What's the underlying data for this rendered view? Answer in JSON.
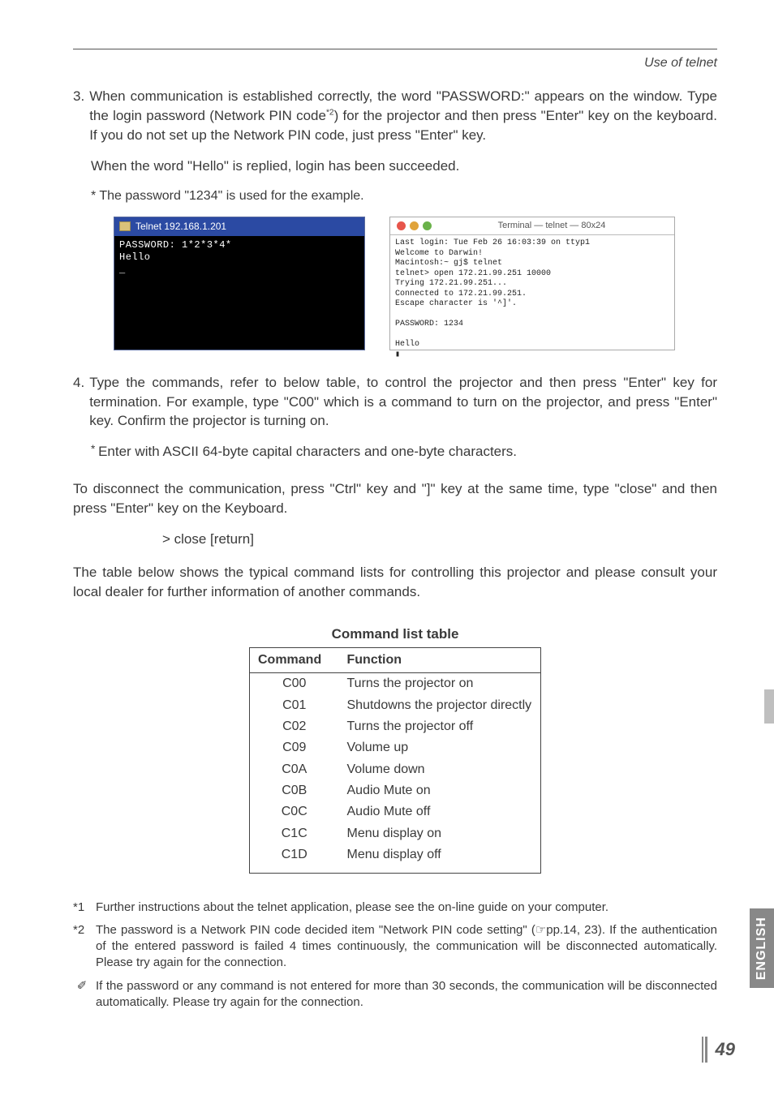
{
  "header": {
    "title": "Use of telnet"
  },
  "step3": {
    "num": "3.",
    "text_a": "When communication is established correctly, the word \"PASSWORD:\" appears on the window. Type the login password (Network PIN code",
    "sup": "*2",
    "text_b": ") for the projector and then press \"Enter\" key on the keyboard. If you do not set up the Network PIN code, just press \"Enter\" key.",
    "line2": "When the word \"Hello\" is replied, login has been succeeded.",
    "note": "* The password \"1234\" is used for the example."
  },
  "telnet": {
    "title": "Telnet 192.168.1.201",
    "body": "PASSWORD: 1*2*3*4*\nHello\n_"
  },
  "mac": {
    "title": "Terminal — telnet — 80x24",
    "btn_colors": [
      "#e7554b",
      "#e0a33a",
      "#6ab24a"
    ],
    "body": "Last login: Tue Feb 26 16:03:39 on ttyp1\nWelcome to Darwin!\nMacintosh:~ gj$ telnet\ntelnet> open 172.21.99.251 10000\nTrying 172.21.99.251...\nConnected to 172.21.99.251.\nEscape character is '^]'.\n\nPASSWORD: 1234\n\nHello\n▮"
  },
  "step4": {
    "num": "4.",
    "text": "Type the commands, refer to below table, to control the projector and then press \"Enter\" key for termination. For example, type \"C00\" which is a command to turn on the projector, and press \"Enter\" key. Confirm the projector is turning on.",
    "sub": "Enter with ASCII 64-byte capital characters and one-byte characters."
  },
  "disconnect": {
    "p": "To disconnect the communication, press \"Ctrl\" key and \"]\" key at the same time, type \"close\" and then press \"Enter\" key on the Keyboard.",
    "example": "> close [return]"
  },
  "table_intro": "The table below shows the typical command lists for controlling this projector and please consult your local dealer for further information of another commands.",
  "cmd_table": {
    "title": "Command list table",
    "headers": [
      "Command",
      "Function"
    ],
    "rows": [
      [
        "C00",
        "Turns the projector on"
      ],
      [
        "C01",
        "Shutdowns the projector directly"
      ],
      [
        "C02",
        "Turns the projector off"
      ],
      [
        "C09",
        "Volume up"
      ],
      [
        "C0A",
        "Volume down"
      ],
      [
        "C0B",
        "Audio Mute on"
      ],
      [
        "C0C",
        "Audio Mute off"
      ],
      [
        "C1C",
        "Menu display on"
      ],
      [
        "C1D",
        "Menu display off"
      ]
    ]
  },
  "footnotes": {
    "f1": {
      "mark": "*1",
      "text": "Further instructions about the telnet application, please see the on-line guide on your computer."
    },
    "f2": {
      "mark": "*2",
      "text": "The password is a Network PIN code decided item \"Network PIN code setting\" (☞pp.14, 23). If the authentication of the entered password is failed 4 times continuously, the communication will be disconnected automatically. Please try again for the connection."
    },
    "f3": {
      "mark": "✐",
      "text": "If the password or any command is not entered for more than 30 seconds, the communication will be disconnected automatically. Please try again for the connection."
    }
  },
  "side_tab": "ENGLISH",
  "page_number": "49"
}
